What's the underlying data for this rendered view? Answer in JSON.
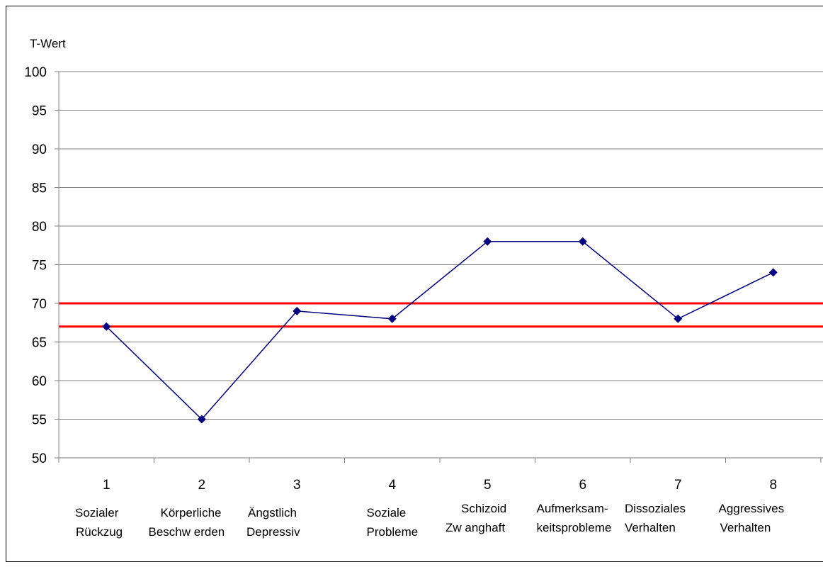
{
  "chart_data": {
    "type": "line",
    "ylabel": "T-Wert",
    "ylim": [
      50,
      100
    ],
    "yticks": [
      "50",
      "55",
      "60",
      "65",
      "70",
      "75",
      "80",
      "85",
      "90",
      "95",
      "100"
    ],
    "grid": true,
    "categories": [
      {
        "num": "1",
        "line1": "Sozialer",
        "line2": "Rückzug"
      },
      {
        "num": "2",
        "line1": "Körperliche",
        "line2": "Beschw erden"
      },
      {
        "num": "3",
        "line1": "Ängstlich",
        "line2": "Depressiv"
      },
      {
        "num": "4",
        "line1": "Soziale",
        "line2": "Probleme"
      },
      {
        "num": "5",
        "line1": "Schizoid",
        "line2": "Zw anghaft"
      },
      {
        "num": "6",
        "line1": "Aufmerksam-",
        "line2": "keitsprobleme"
      },
      {
        "num": "7",
        "line1": "Dissoziales",
        "line2": "Verhalten"
      },
      {
        "num": "8",
        "line1": "Aggressives",
        "line2": "Verhalten"
      }
    ],
    "series": [
      {
        "values": [
          67,
          55,
          69,
          68,
          78,
          78,
          68,
          74
        ]
      }
    ],
    "reference_lines": [
      67,
      70
    ]
  },
  "colors": {
    "series": "#000080",
    "reference": "#ff0000",
    "grid": "#808080",
    "axis": "#808080"
  }
}
